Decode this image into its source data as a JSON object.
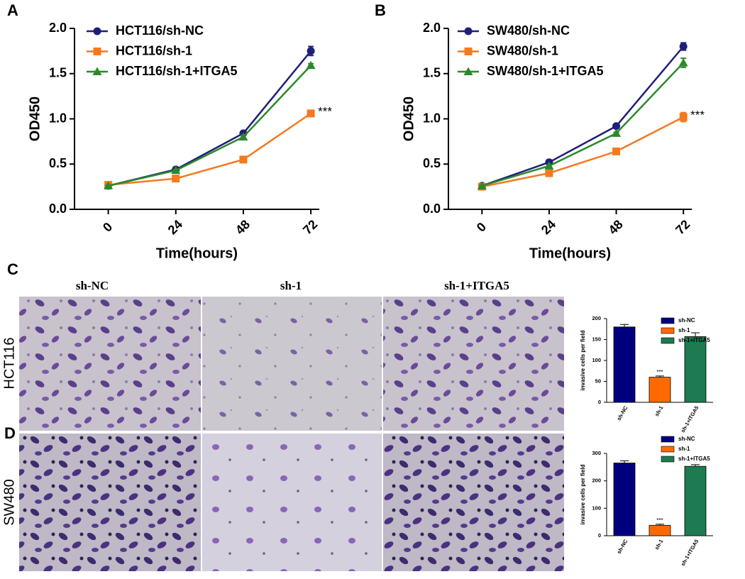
{
  "panel_labels": [
    "A",
    "B",
    "C",
    "D"
  ],
  "column_labels": [
    "sh-NC",
    "sh-1",
    "sh-1+ITGA5"
  ],
  "row_labels": [
    "HCT116",
    "SW480"
  ],
  "chart_data": [
    {
      "type": "line",
      "ylabel": "OD450",
      "xlabel": "Time(hours)",
      "x": [
        0,
        24,
        48,
        72
      ],
      "xlim": [
        -12,
        75
      ],
      "xticks": [
        0,
        24,
        48,
        72
      ],
      "ylim": [
        0,
        2
      ],
      "yticks": [
        {
          "value": 0,
          "label": "0.0"
        },
        0.5,
        {
          "value": 1,
          "label": "1.0"
        },
        1.5,
        {
          "value": 2,
          "label": "2.0"
        }
      ],
      "series": [
        {
          "name": "HCT116/sh-NC",
          "color": "#1f1f7a",
          "marker": "circle",
          "values": [
            0.26,
            0.44,
            0.84,
            1.75
          ],
          "errors": [
            0.01,
            0.01,
            0.02,
            0.05
          ]
        },
        {
          "name": "HCT116/sh-1",
          "color": "#f47a20",
          "marker": "square",
          "values": [
            0.27,
            0.34,
            0.55,
            1.06
          ],
          "errors": [
            0.01,
            0.01,
            0.01,
            0.03
          ]
        },
        {
          "name": "HCT116/sh-1+ITGA5",
          "color": "#2a8a2a",
          "marker": "triangle",
          "values": [
            0.26,
            0.43,
            0.8,
            1.59
          ],
          "errors": [
            0.01,
            0.01,
            0.02,
            0.02
          ]
        }
      ],
      "annotation": "***"
    },
    {
      "type": "line",
      "ylabel": "OD450",
      "xlabel": "Time(hours)",
      "x": [
        0,
        24,
        48,
        72
      ],
      "xlim": [
        -12,
        75
      ],
      "xticks": [
        0,
        24,
        48,
        72
      ],
      "ylim": [
        0,
        2
      ],
      "yticks": [
        {
          "value": 0,
          "label": "0.0"
        },
        0.5,
        {
          "value": 1,
          "label": "1.0"
        },
        1.5,
        {
          "value": 2,
          "label": "2.0"
        }
      ],
      "series": [
        {
          "name": "SW480/sh-NC",
          "color": "#1f1f7a",
          "marker": "circle",
          "values": [
            0.26,
            0.52,
            0.92,
            1.8
          ],
          "errors": [
            0.01,
            0.01,
            0.01,
            0.04
          ]
        },
        {
          "name": "SW480/sh-1",
          "color": "#f47a20",
          "marker": "square",
          "values": [
            0.25,
            0.4,
            0.64,
            1.02
          ],
          "errors": [
            0.01,
            0.01,
            0.01,
            0.05
          ]
        },
        {
          "name": "SW480/sh-1+ITGA5",
          "color": "#2a8a2a",
          "marker": "triangle",
          "values": [
            0.26,
            0.48,
            0.84,
            1.62
          ],
          "errors": [
            0.01,
            0.01,
            0.01,
            0.05
          ]
        }
      ],
      "annotation": "***"
    },
    {
      "type": "bar",
      "ylabel": "invasive cells per field",
      "categories": [
        "sh-NC",
        "sh-1",
        "sh-1+ITGA5"
      ],
      "values": [
        180,
        60,
        157
      ],
      "errors": [
        6,
        3,
        9
      ],
      "colors": [
        "#00007f",
        "#ff6a00",
        "#1e7a50"
      ],
      "ylim": [
        0,
        200
      ],
      "yticks": [
        0,
        50,
        100,
        150,
        200
      ],
      "annotation": "***"
    },
    {
      "type": "bar",
      "ylabel": "invasive cells per field",
      "categories": [
        "sh-NC",
        "sh-1",
        "sh-1+ITGA5"
      ],
      "values": [
        265,
        38,
        253
      ],
      "errors": [
        8,
        4,
        6
      ],
      "colors": [
        "#00007f",
        "#ff6a00",
        "#1e7a50"
      ],
      "ylim": [
        0,
        300
      ],
      "yticks": [
        0,
        100,
        200,
        300
      ],
      "annotation": "***"
    }
  ]
}
